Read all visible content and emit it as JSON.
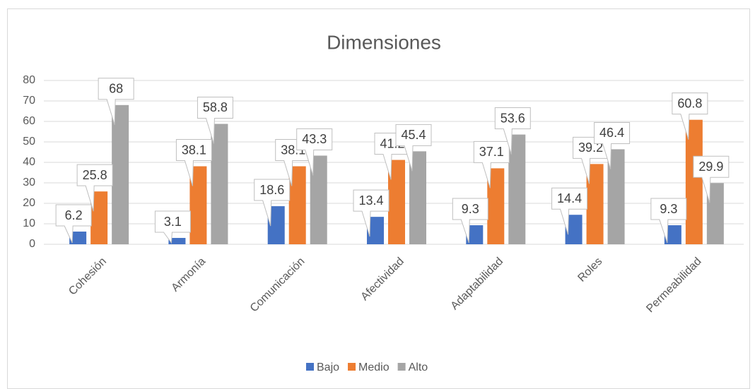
{
  "chart_data": {
    "type": "bar",
    "title": "Dimensiones",
    "categories": [
      "Cohesión",
      "Armonía",
      "Comunicación",
      "Afectividad",
      "Adaptabilidad",
      "Roles",
      "Permeabilidad"
    ],
    "series": [
      {
        "name": "Bajo",
        "color": "#4472c4",
        "values": [
          6.2,
          3.1,
          18.6,
          13.4,
          9.3,
          14.4,
          9.3
        ]
      },
      {
        "name": "Medio",
        "color": "#ed7d31",
        "values": [
          25.8,
          38.1,
          38.1,
          41.2,
          37.1,
          39.2,
          60.8
        ]
      },
      {
        "name": "Alto",
        "color": "#a5a5a5",
        "values": [
          68,
          58.8,
          43.3,
          45.4,
          53.6,
          46.4,
          29.9
        ]
      }
    ],
    "ylim": [
      0,
      80
    ],
    "yticks": [
      0,
      10,
      20,
      30,
      40,
      50,
      60,
      70,
      80
    ],
    "grid": true,
    "legend": "bottom"
  }
}
